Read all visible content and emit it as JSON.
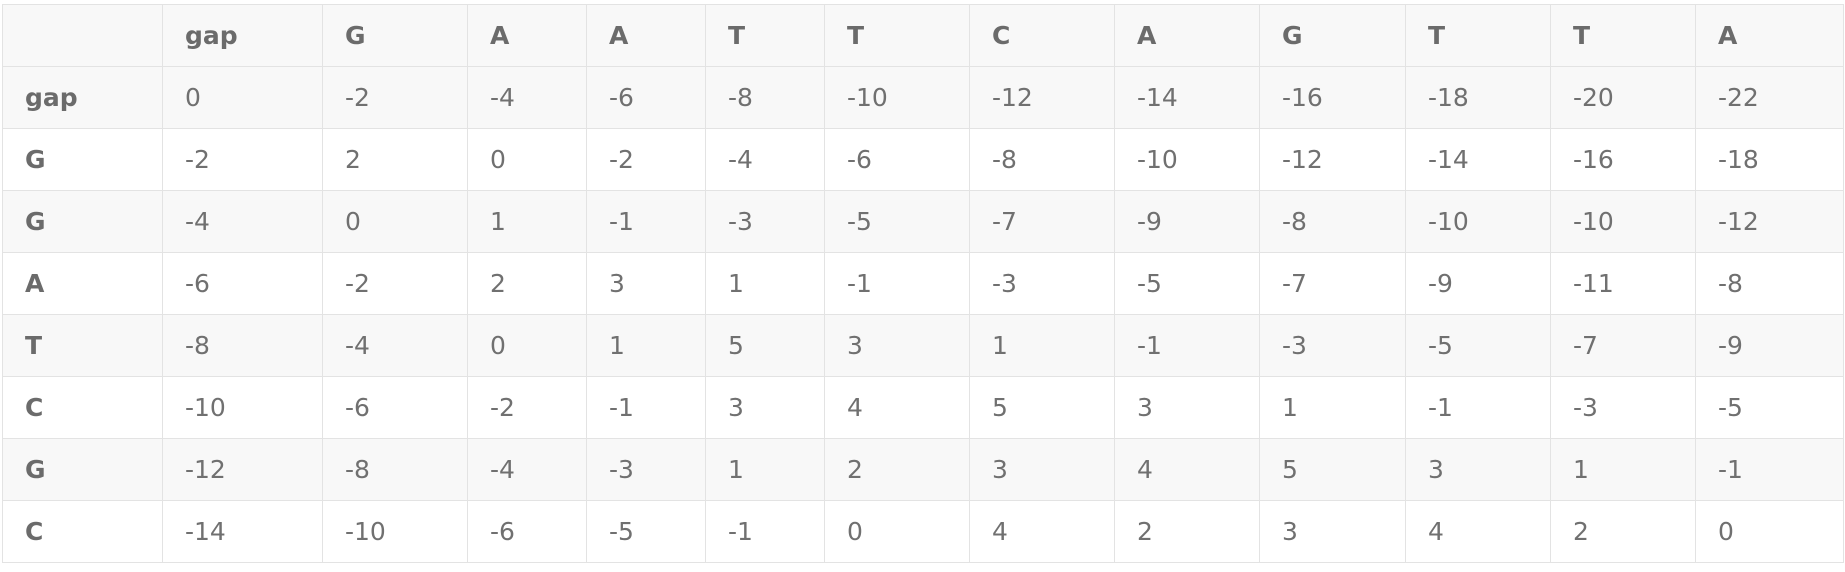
{
  "table": {
    "corner": "",
    "columns": [
      "gap",
      "G",
      "A",
      "A",
      "T",
      "T",
      "C",
      "A",
      "G",
      "T",
      "T",
      "A"
    ],
    "rows": [
      {
        "label": "gap",
        "cells": [
          "0",
          "-2",
          "-4",
          "-6",
          "-8",
          "-10",
          "-12",
          "-14",
          "-16",
          "-18",
          "-20",
          "-22"
        ]
      },
      {
        "label": "G",
        "cells": [
          "-2",
          "2",
          "0",
          "-2",
          "-4",
          "-6",
          "-8",
          "-10",
          "-12",
          "-14",
          "-16",
          "-18"
        ]
      },
      {
        "label": "G",
        "cells": [
          "-4",
          "0",
          "1",
          "-1",
          "-3",
          "-5",
          "-7",
          "-9",
          "-8",
          "-10",
          "-10",
          "-12"
        ]
      },
      {
        "label": "A",
        "cells": [
          "-6",
          "-2",
          "2",
          "3",
          "1",
          "-1",
          "-3",
          "-5",
          "-7",
          "-9",
          "-11",
          "-8"
        ]
      },
      {
        "label": "T",
        "cells": [
          "-8",
          "-4",
          "0",
          "1",
          "5",
          "3",
          "1",
          "-1",
          "-3",
          "-5",
          "-7",
          "-9"
        ]
      },
      {
        "label": "C",
        "cells": [
          "-10",
          "-6",
          "-2",
          "-1",
          "3",
          "4",
          "5",
          "3",
          "1",
          "-1",
          "-3",
          "-5"
        ]
      },
      {
        "label": "G",
        "cells": [
          "-12",
          "-8",
          "-4",
          "-3",
          "1",
          "2",
          "3",
          "4",
          "5",
          "3",
          "1",
          "-1"
        ]
      },
      {
        "label": "C",
        "cells": [
          "-14",
          "-10",
          "-6",
          "-5",
          "-1",
          "0",
          "4",
          "2",
          "3",
          "4",
          "2",
          "0"
        ]
      }
    ]
  }
}
